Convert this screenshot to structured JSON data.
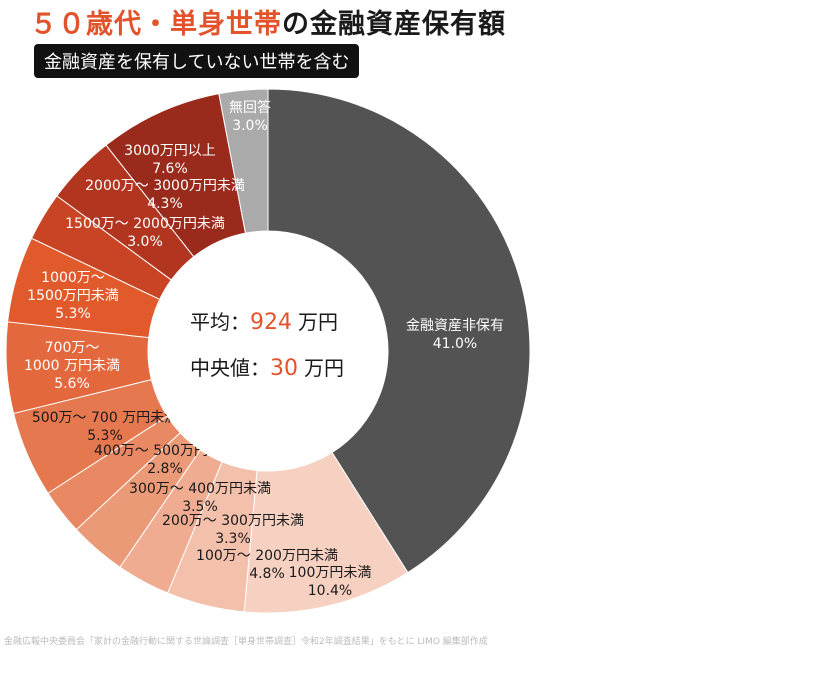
{
  "title": {
    "accent": "５０歳代・単身世帯",
    "main": "の金融資産保有額"
  },
  "subtitle": "金融資産を保有していない世帯を含む",
  "center": {
    "avg_label": "平均：",
    "avg_value": "924",
    "avg_unit": "万円",
    "median_label": "中央値：",
    "median_value": "30",
    "median_unit": "万円"
  },
  "source": "金融広報中央委員会「家計の金融行動に関する世論調査［単身世帯調査］令和2年調査結果」をもとに LIMO 編集部作成",
  "colors": {
    "accent": "#e2532b",
    "center_value": "#e2532b"
  },
  "chart_data": {
    "type": "pie",
    "donut": true,
    "unit": "%",
    "slices": [
      {
        "label": "金融資産非保有",
        "value": 41.0,
        "color": "#535353",
        "text_color": "#ffffff"
      },
      {
        "label": "100万円未満",
        "value": 10.4,
        "color": "#f6d1c2",
        "text_color": "#1a1a1a"
      },
      {
        "label": "100万～ 200万円未満",
        "value": 4.8,
        "color": "#f3c0ab",
        "text_color": "#1a1a1a"
      },
      {
        "label": "200万～ 300万円未満",
        "value": 3.3,
        "color": "#efac91",
        "text_color": "#1a1a1a"
      },
      {
        "label": "300万～ 400万円未満",
        "value": 3.5,
        "color": "#eb9a78",
        "text_color": "#1a1a1a"
      },
      {
        "label": "400万～ 500万円未満",
        "value": 2.8,
        "color": "#e88963",
        "text_color": "#1a1a1a"
      },
      {
        "label": "500万～ 700 万円未満",
        "value": 5.3,
        "color": "#e6784f",
        "text_color": "#1a1a1a"
      },
      {
        "label": "700万～ 1000 万円未満",
        "value": 5.6,
        "color": "#e4683d",
        "text_color": "#ffffff"
      },
      {
        "label": "1000万～ 1500万円未満",
        "value": 5.3,
        "color": "#e05a2c",
        "text_color": "#ffffff"
      },
      {
        "label": "1500万～ 2000万円未満",
        "value": 3.0,
        "color": "#c94424",
        "text_color": "#ffffff"
      },
      {
        "label": "2000万～ 3000万円未満",
        "value": 4.3,
        "color": "#b23520",
        "text_color": "#ffffff"
      },
      {
        "label": "3000万円以上",
        "value": 7.6,
        "color": "#992a1c",
        "text_color": "#ffffff"
      },
      {
        "label": "無回答",
        "value": 3.0,
        "color": "#aaaaaa",
        "text_color": "#ffffff"
      }
    ]
  }
}
